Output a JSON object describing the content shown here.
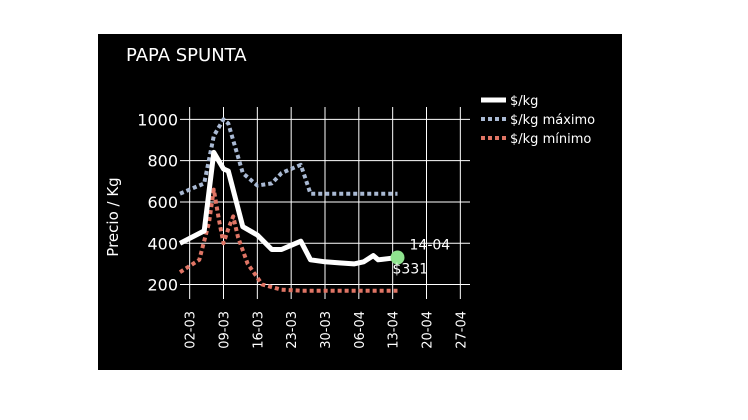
{
  "chart_data": {
    "type": "line",
    "title": "PAPA SPUNTA",
    "xlabel": "",
    "ylabel": "Precio / Kg",
    "x_ticks": [
      "02-03",
      "09-03",
      "16-03",
      "23-03",
      "30-03",
      "06-04",
      "13-04",
      "20-04",
      "27-04"
    ],
    "y_ticks": [
      200,
      400,
      600,
      800,
      1000
    ],
    "xlim": [
      "2023-02-28",
      "2023-04-29"
    ],
    "ylim": [
      130,
      1060
    ],
    "grid": true,
    "legend_position": "top-right",
    "series": [
      {
        "name": "$/kg",
        "color": "#ffffff",
        "style": "solid",
        "points": [
          [
            "2023-02-28",
            400
          ],
          [
            "2023-03-05",
            460
          ],
          [
            "2023-03-07",
            840
          ],
          [
            "2023-03-09",
            760
          ],
          [
            "2023-03-10",
            750
          ],
          [
            "2023-03-13",
            480
          ],
          [
            "2023-03-16",
            440
          ],
          [
            "2023-03-19",
            370
          ],
          [
            "2023-03-21",
            370
          ],
          [
            "2023-03-23",
            390
          ],
          [
            "2023-03-25",
            410
          ],
          [
            "2023-03-27",
            320
          ],
          [
            "2023-03-30",
            310
          ],
          [
            "2023-04-02",
            305
          ],
          [
            "2023-04-05",
            300
          ],
          [
            "2023-04-07",
            310
          ],
          [
            "2023-04-09",
            340
          ],
          [
            "2023-04-10",
            320
          ],
          [
            "2023-04-12",
            325
          ],
          [
            "2023-04-14",
            331
          ]
        ]
      },
      {
        "name": "$/kg máximo",
        "color": "#a9b9d3",
        "style": "dotted",
        "points": [
          [
            "2023-02-28",
            640
          ],
          [
            "2023-03-05",
            690
          ],
          [
            "2023-03-07",
            920
          ],
          [
            "2023-03-09",
            1000
          ],
          [
            "2023-03-10",
            980
          ],
          [
            "2023-03-13",
            740
          ],
          [
            "2023-03-16",
            680
          ],
          [
            "2023-03-19",
            690
          ],
          [
            "2023-03-21",
            740
          ],
          [
            "2023-03-23",
            760
          ],
          [
            "2023-03-25",
            780
          ],
          [
            "2023-03-27",
            640
          ],
          [
            "2023-03-30",
            640
          ],
          [
            "2023-04-06",
            640
          ],
          [
            "2023-04-14",
            640
          ]
        ]
      },
      {
        "name": "$/kg mínimo",
        "color": "#e07565",
        "style": "dotted",
        "points": [
          [
            "2023-02-28",
            260
          ],
          [
            "2023-03-04",
            320
          ],
          [
            "2023-03-06",
            500
          ],
          [
            "2023-03-07",
            660
          ],
          [
            "2023-03-08",
            520
          ],
          [
            "2023-03-09",
            400
          ],
          [
            "2023-03-10",
            470
          ],
          [
            "2023-03-11",
            530
          ],
          [
            "2023-03-12",
            430
          ],
          [
            "2023-03-14",
            300
          ],
          [
            "2023-03-17",
            200
          ],
          [
            "2023-03-21",
            175
          ],
          [
            "2023-03-25",
            170
          ],
          [
            "2023-04-06",
            170
          ],
          [
            "2023-04-14",
            170
          ]
        ]
      }
    ],
    "annotation": {
      "x": "2023-04-14",
      "y": 331,
      "date_label": "14-04",
      "value_label": "$331",
      "marker_color": "#8ee38e"
    }
  }
}
